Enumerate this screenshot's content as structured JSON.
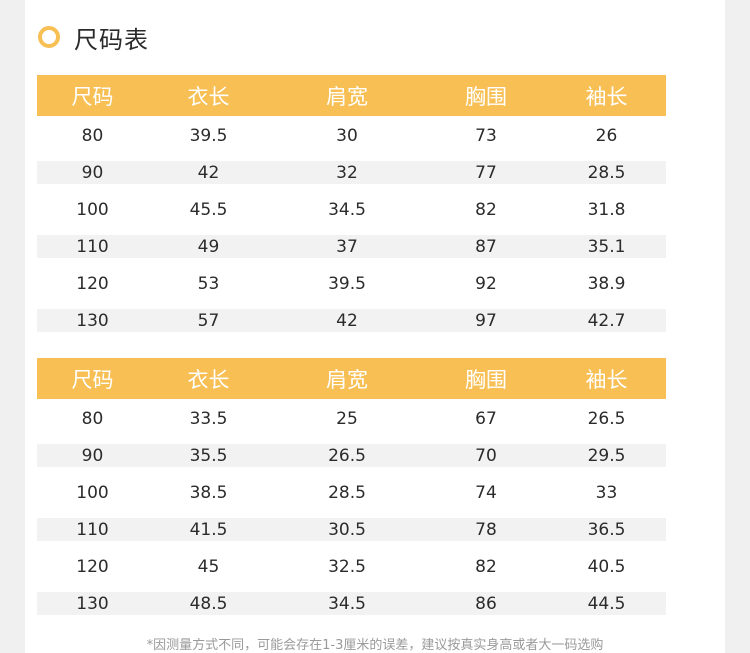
{
  "title": "尺码表",
  "tables": [
    {
      "headers": [
        "尺码",
        "衣长",
        "肩宽",
        "胸围",
        "袖长"
      ],
      "rows": [
        [
          "80",
          "39.5",
          "30",
          "73",
          "26"
        ],
        [
          "90",
          "42",
          "32",
          "77",
          "28.5"
        ],
        [
          "100",
          "45.5",
          "34.5",
          "82",
          "31.8"
        ],
        [
          "110",
          "49",
          "37",
          "87",
          "35.1"
        ],
        [
          "120",
          "53",
          "39.5",
          "92",
          "38.9"
        ],
        [
          "130",
          "57",
          "42",
          "97",
          "42.7"
        ]
      ]
    },
    {
      "headers": [
        "尺码",
        "衣长",
        "肩宽",
        "胸围",
        "袖长"
      ],
      "rows": [
        [
          "80",
          "33.5",
          "25",
          "67",
          "26.5"
        ],
        [
          "90",
          "35.5",
          "26.5",
          "70",
          "29.5"
        ],
        [
          "100",
          "38.5",
          "28.5",
          "74",
          "33"
        ],
        [
          "110",
          "41.5",
          "30.5",
          "78",
          "36.5"
        ],
        [
          "120",
          "45",
          "32.5",
          "82",
          "40.5"
        ],
        [
          "130",
          "48.5",
          "34.5",
          "86",
          "44.5"
        ]
      ]
    }
  ],
  "note": "*因测量方式不同，可能会存在1-3厘米的误差，建议按真实身高或者大一码选购",
  "colors": {
    "accent": "#f7bf54",
    "stripe": "#f2f2f2",
    "text": "#2b2b2b",
    "note": "#9a9a9a"
  }
}
